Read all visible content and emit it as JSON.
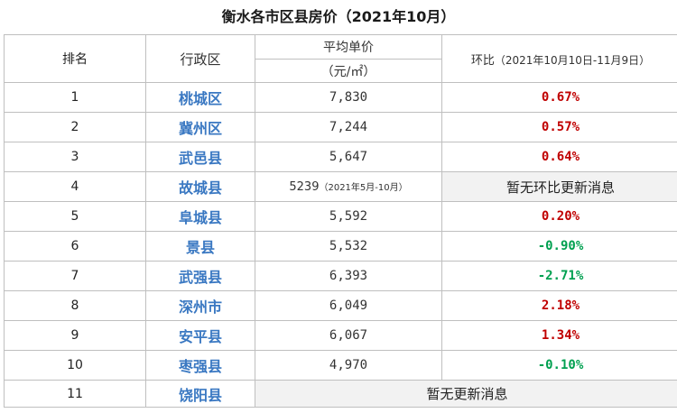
{
  "title": "衡水各市区县房价（2021年10月）",
  "headers": {
    "rank": "排名",
    "district": "行政区",
    "price": "平均单价",
    "price_unit": "（元/㎡）",
    "ratio_label": "环比",
    "ratio_range": "（2021年10月10日-11月9日）"
  },
  "rows": [
    {
      "rank": "1",
      "district": "桃城区",
      "price": "7,830",
      "ratio": "0.67%"
    },
    {
      "rank": "2",
      "district": "冀州区",
      "price": "7,244",
      "ratio": "0.57%"
    },
    {
      "rank": "3",
      "district": "武邑县",
      "price": "5,647",
      "ratio": "0.64%"
    },
    {
      "rank": "4",
      "district": "故城县",
      "price": "5239",
      "price_note": "（2021年5月-10月）",
      "ratio": "暂无环比更新消息"
    },
    {
      "rank": "5",
      "district": "阜城县",
      "price": "5,592",
      "ratio": "0.20%"
    },
    {
      "rank": "6",
      "district": "景县",
      "price": "5,532",
      "ratio": "-0.90%"
    },
    {
      "rank": "7",
      "district": "武强县",
      "price": "6,393",
      "ratio": "-2.71%"
    },
    {
      "rank": "8",
      "district": "深州市",
      "price": "6,049",
      "ratio": "2.18%"
    },
    {
      "rank": "9",
      "district": "安平县",
      "price": "6,067",
      "ratio": "1.34%"
    },
    {
      "rank": "10",
      "district": "枣强县",
      "price": "4,970",
      "ratio": "-0.10%"
    },
    {
      "rank": "11",
      "district": "饶阳县",
      "no_update": "暂无更新消息"
    }
  ],
  "colors": {
    "district_text": "#3a78c2",
    "increase": "#c00000",
    "decrease": "#00a050",
    "no_update_fill": "#f2f2f2"
  }
}
